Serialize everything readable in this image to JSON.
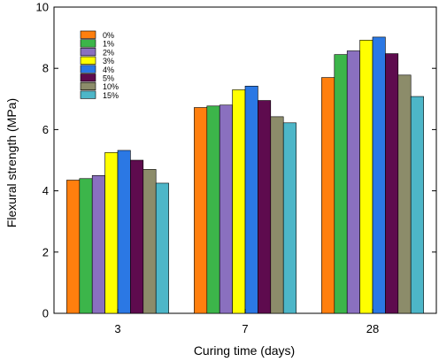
{
  "chart_data": {
    "type": "bar",
    "title": "",
    "xlabel": "Curing time (days)",
    "ylabel": "Flexural strength (MPa)",
    "ylim": [
      0,
      10
    ],
    "yticks": [
      0,
      2,
      4,
      6,
      8,
      10
    ],
    "categories": [
      "3",
      "7",
      "28"
    ],
    "grid": false,
    "legend_position": "top-left",
    "series": [
      {
        "name": "0%",
        "color": "#ff7f0e",
        "values": [
          4.35,
          6.72,
          7.7
        ]
      },
      {
        "name": "1%",
        "color": "#3cb54a",
        "values": [
          4.4,
          6.77,
          8.45
        ]
      },
      {
        "name": "2%",
        "color": "#8a70bf",
        "values": [
          4.5,
          6.8,
          8.57
        ]
      },
      {
        "name": "3%",
        "color": "#ffff00",
        "values": [
          5.25,
          7.3,
          8.92
        ]
      },
      {
        "name": "4%",
        "color": "#2b78e4",
        "values": [
          5.32,
          7.42,
          9.02
        ]
      },
      {
        "name": "5%",
        "color": "#5e0b4e",
        "values": [
          5.0,
          6.95,
          8.48
        ]
      },
      {
        "name": "10%",
        "color": "#8c8c6a",
        "values": [
          4.7,
          6.42,
          7.78
        ]
      },
      {
        "name": "15%",
        "color": "#4db6c8",
        "values": [
          4.25,
          6.22,
          7.08
        ]
      }
    ]
  }
}
